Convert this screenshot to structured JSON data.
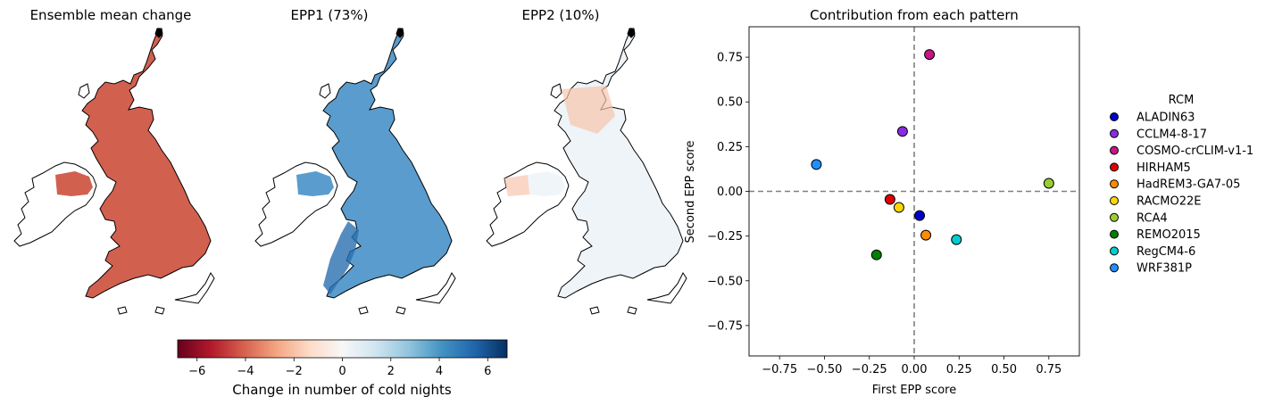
{
  "maps": {
    "titles": [
      "Ensemble mean change",
      "EPP1 (73%)",
      "EPP2 (10%)"
    ],
    "colorbar": {
      "label": "Change in number of cold nights",
      "ticks": [
        -6,
        -4,
        -2,
        0,
        2,
        4,
        6
      ],
      "range": [
        -6.8,
        6.8
      ],
      "colormap": "RdBu",
      "stops": [
        "#67001f",
        "#b2182b",
        "#d6604d",
        "#f4a582",
        "#fddbc7",
        "#f7f7f7",
        "#d1e5f0",
        "#92c5de",
        "#4393c3",
        "#2166ac",
        "#053061"
      ]
    },
    "fill_colors": [
      "#d2604f",
      "#5a9ccd",
      "#eef4f8"
    ],
    "outline_color": "#000000"
  },
  "chart_data": {
    "type": "scatter",
    "title": "Contribution from each pattern",
    "xlabel": "First EPP score",
    "ylabel": "Second EPP score",
    "xlim": [
      -0.92,
      0.92
    ],
    "ylim": [
      -0.92,
      0.92
    ],
    "xticks": [
      -0.75,
      -0.5,
      -0.25,
      0.0,
      0.25,
      0.5,
      0.75
    ],
    "yticks": [
      -0.75,
      -0.5,
      -0.25,
      0.0,
      0.25,
      0.5,
      0.75
    ],
    "tick_labels_x": [
      "−0.75",
      "−0.50",
      "−0.25",
      "0.00",
      "0.25",
      "0.50",
      "0.75"
    ],
    "tick_labels_y": [
      "−0.75",
      "−0.50",
      "−0.25",
      "0.00",
      "0.25",
      "0.50",
      "0.75"
    ],
    "grid": false,
    "reference_lines": {
      "x": 0,
      "y": 0,
      "style": "dashed",
      "color": "#808080"
    },
    "legend": {
      "title": "RCM",
      "placement": "right-outside"
    },
    "series": [
      {
        "name": "ALADIN63",
        "color": "#0000c8",
        "x": 0.03,
        "y": -0.135
      },
      {
        "name": "CCLM4-8-17",
        "color": "#8a2be2",
        "x": -0.065,
        "y": 0.335
      },
      {
        "name": "COSMO-crCLIM-v1-1",
        "color": "#c71585",
        "x": 0.085,
        "y": 0.765
      },
      {
        "name": "HIRHAM5",
        "color": "#e00000",
        "x": -0.135,
        "y": -0.045
      },
      {
        "name": "HadREM3-GA7-05",
        "color": "#ff8c00",
        "x": 0.065,
        "y": -0.245
      },
      {
        "name": "RACMO22E",
        "color": "#ffd700",
        "x": -0.085,
        "y": -0.09
      },
      {
        "name": "RCA4",
        "color": "#9acd32",
        "x": 0.75,
        "y": 0.045
      },
      {
        "name": "REMO2015",
        "color": "#008000",
        "x": -0.21,
        "y": -0.355
      },
      {
        "name": "RegCM4-6",
        "color": "#00ced1",
        "x": 0.235,
        "y": -0.27
      },
      {
        "name": "WRF381P",
        "color": "#1e90ff",
        "x": -0.545,
        "y": 0.15
      }
    ]
  }
}
